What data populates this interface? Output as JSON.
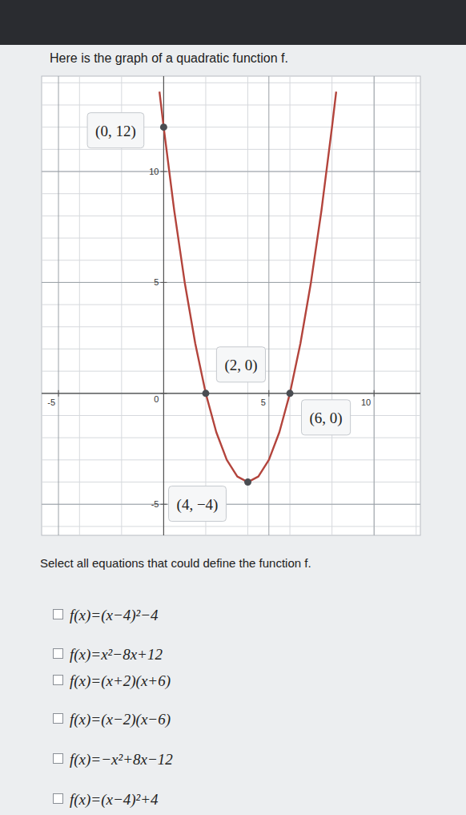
{
  "title": "Here is the graph of a quadratic function f.",
  "chart_data": {
    "type": "line",
    "x": [
      -0.2,
      0,
      0.5,
      1,
      1.5,
      2,
      2.5,
      3,
      3.5,
      4,
      4.5,
      5,
      5.5,
      6,
      6.5,
      7,
      7.5,
      8,
      8.2
    ],
    "series": [
      {
        "color": "#b3443c",
        "values": [
          13.6,
          12,
          8.25,
          5,
          2.25,
          0,
          -1.75,
          -3,
          -3.75,
          -4,
          -3.75,
          -3,
          -1.75,
          0,
          2.25,
          5,
          8.25,
          12,
          13.6
        ]
      }
    ],
    "annotations": [
      {
        "label": "(0, 12)",
        "x": 0,
        "y": 12
      },
      {
        "label": "(2, 0)",
        "x": 2,
        "y": 0
      },
      {
        "label": "(6, 0)",
        "x": 6,
        "y": 0
      },
      {
        "label": "(4, −4)",
        "x": 4,
        "y": -4
      }
    ],
    "xlim": [
      -5.8,
      12.2
    ],
    "ylim": [
      -6.4,
      14.3
    ],
    "xticks": [
      -5,
      5,
      10
    ],
    "yticks": [
      -5,
      0,
      5,
      10
    ],
    "grid": true
  },
  "question": "Select all equations that could define the function f.",
  "options": [
    "f(x)=(x−4)²−4",
    "f(x)=x²−8x+12",
    "f(x)=(x+2)(x+6)",
    "f(x)=(x−2)(x−6)",
    "f(x)=−x²+8x−12",
    "f(x)=(x−4)²+4"
  ]
}
